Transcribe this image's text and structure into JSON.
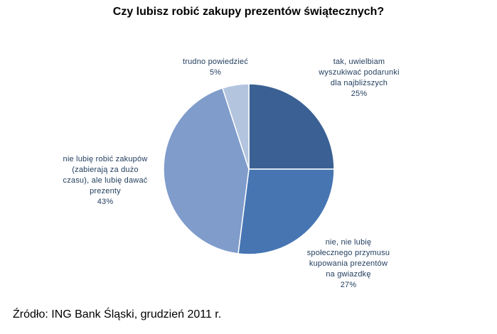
{
  "chart_data": {
    "type": "pie",
    "title": "Czy lubisz robić zakupy prezentów świątecznych?",
    "start_angle_deg": 0,
    "direction": "clockwise",
    "slices": [
      {
        "lines": [
          "tak, uwielbiam",
          "wyszukiwać podarunki",
          "dla najbliższych"
        ],
        "value_label": "25%",
        "value": 25,
        "color": "#3b6194"
      },
      {
        "lines": [
          "nie, nie lubię",
          "społecznego przymusu",
          "kupowania prezentów",
          "na gwiazdkę"
        ],
        "value_label": "27%",
        "value": 27,
        "color": "#4675b2"
      },
      {
        "lines": [
          "nie lubię robić zakupów",
          "(zabierają za dużo",
          "czasu), ale lubię dawać",
          "prezenty"
        ],
        "value_label": "43%",
        "value": 43,
        "color": "#7f9ccb"
      },
      {
        "lines": [
          "trudno powiedzieć"
        ],
        "value_label": "5%",
        "value": 5,
        "color": "#b3c4de"
      }
    ]
  },
  "source": "Źródło: ING Bank Śląski, grudzień 2011 r."
}
